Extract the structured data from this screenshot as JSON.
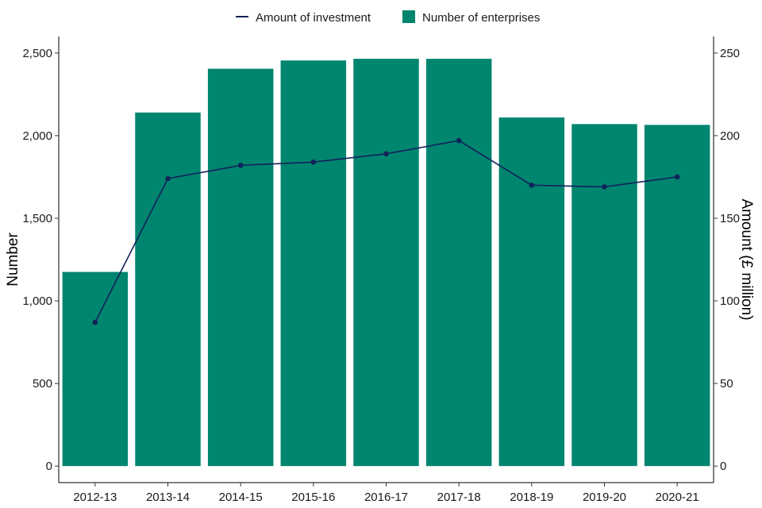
{
  "chart_data": {
    "type": "bar",
    "categories": [
      "2012-13",
      "2013-14",
      "2014-15",
      "2015-16",
      "2016-17",
      "2017-18",
      "2018-19",
      "2019-20",
      "2020-21"
    ],
    "series": [
      {
        "name": "Number of enterprises",
        "type": "bar",
        "axis": "left",
        "color": "#00856f",
        "values": [
          1175,
          2140,
          2405,
          2455,
          2465,
          2465,
          2110,
          2070,
          2065
        ]
      },
      {
        "name": "Amount of investment",
        "type": "line",
        "axis": "right",
        "color": "#12235a",
        "values": [
          87,
          174,
          182,
          184,
          189,
          197,
          170,
          169,
          175
        ]
      }
    ],
    "xlabel": "",
    "ylabel": "Number",
    "y2label": "Amount (£ million)",
    "ylim": [
      -100,
      2600
    ],
    "y2lim": [
      -10,
      260
    ],
    "yticks": [
      0,
      500,
      1000,
      1500,
      2000,
      2500
    ],
    "yticks_text": [
      "0",
      "500",
      "1,000",
      "1,500",
      "2,000",
      "2,500"
    ],
    "y2ticks": [
      0,
      50,
      100,
      150,
      200,
      250
    ],
    "y2ticks_text": [
      "0",
      "50",
      "100",
      "150",
      "200",
      "250"
    ],
    "grid": false,
    "legend": "top-center"
  }
}
